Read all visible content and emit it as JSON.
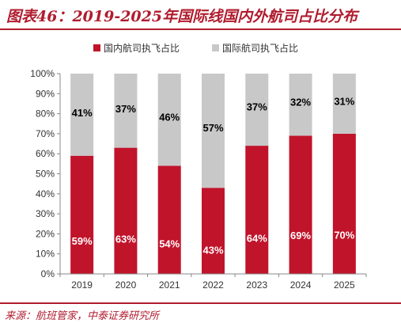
{
  "title": "图表46：2019-2025年国际线国内外航司占比分布",
  "source": "来源：航班管家，中泰证券研究所",
  "colors": {
    "domestic": "#c0142b",
    "foreign": "#c8c8c8",
    "accent": "#b01c2e"
  },
  "chart_data": {
    "type": "bar",
    "stacked": true,
    "percent": true,
    "categories": [
      "2019",
      "2020",
      "2021",
      "2022",
      "2023",
      "2024",
      "2025"
    ],
    "series": [
      {
        "name": "国内航司执飞占比",
        "values": [
          59,
          63,
          54,
          43,
          64,
          69,
          70
        ],
        "labels": [
          "59%",
          "63%",
          "54%",
          "43%",
          "64%",
          "69%",
          "70%"
        ]
      },
      {
        "name": "国际航司执飞占比",
        "values": [
          41,
          37,
          46,
          57,
          37,
          32,
          31
        ],
        "labels": [
          "41%",
          "37%",
          "46%",
          "57%",
          "37%",
          "32%",
          "31%"
        ]
      }
    ],
    "ylim": [
      0,
      100
    ],
    "yticks": [
      "0%",
      "10%",
      "20%",
      "30%",
      "40%",
      "50%",
      "60%",
      "70%",
      "80%",
      "90%",
      "100%"
    ],
    "legend_position": "top",
    "grid": false
  }
}
